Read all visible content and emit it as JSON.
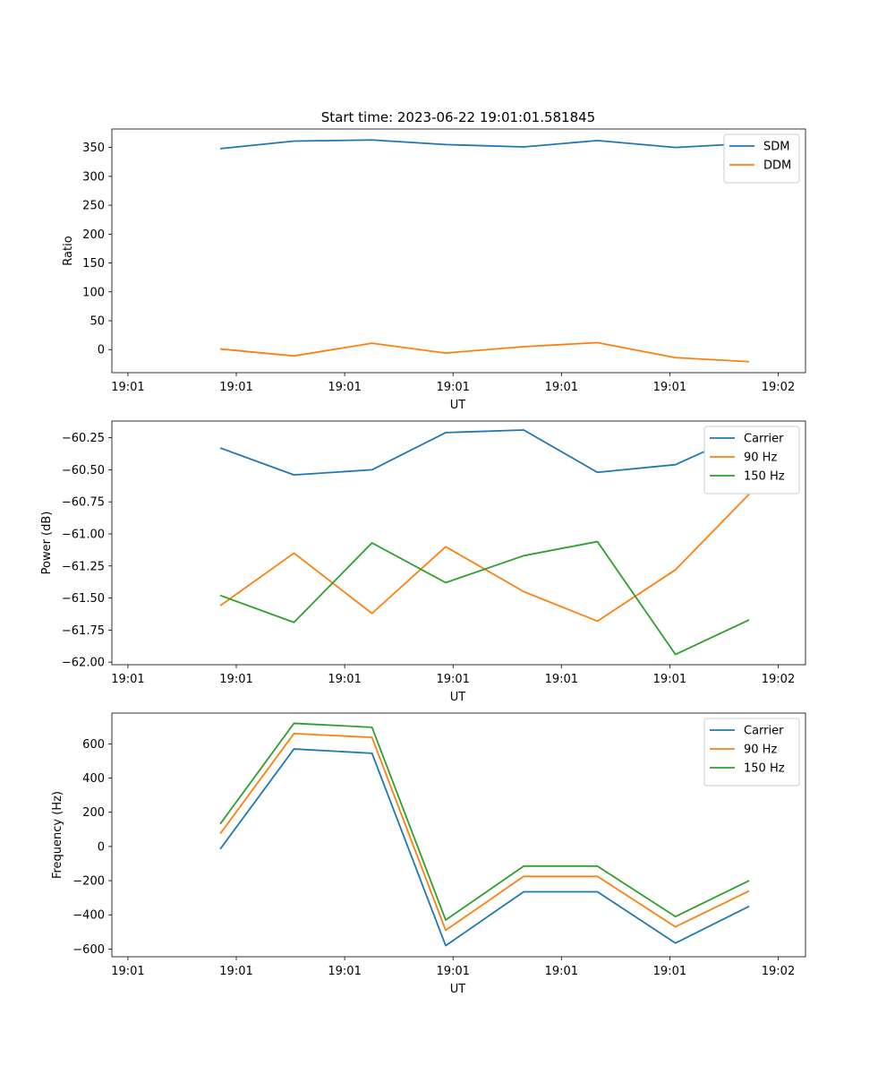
{
  "figure": {
    "title": "Start time: 2023-06-22 19:01:01.581845"
  },
  "chart_data": [
    {
      "type": "line",
      "xlabel": "UT",
      "ylabel": "Ratio",
      "xticks": [
        "19:01",
        "19:01",
        "19:01",
        "19:01",
        "19:01",
        "19:01",
        "19:02"
      ],
      "x": [
        2.5,
        4.2,
        6.0,
        7.7,
        9.5,
        11.2,
        13.0,
        14.7
      ],
      "xlim": [
        0,
        16.0
      ],
      "ylim": [
        -40,
        382
      ],
      "yticks": [
        0,
        50,
        100,
        150,
        200,
        250,
        300,
        350
      ],
      "ytick_labels": [
        "0",
        "50",
        "100",
        "150",
        "200",
        "250",
        "300",
        "350"
      ],
      "legend": "top-right",
      "series": [
        {
          "name": "SDM",
          "color": "#1f77b4",
          "values": [
            348,
            361,
            363,
            355,
            351,
            362,
            350,
            357
          ]
        },
        {
          "name": "DDM",
          "color": "#ff7f0e",
          "values": [
            1,
            -11,
            11,
            -6,
            5,
            12,
            -14,
            -21
          ]
        }
      ]
    },
    {
      "type": "line",
      "xlabel": "UT",
      "ylabel": "Power (dB)",
      "xticks": [
        "19:01",
        "19:01",
        "19:01",
        "19:01",
        "19:01",
        "19:01",
        "19:02"
      ],
      "x": [
        2.5,
        4.2,
        6.0,
        7.7,
        9.5,
        11.2,
        13.0,
        14.7
      ],
      "xlim": [
        0,
        16.0
      ],
      "ylim": [
        -62.02,
        -60.12
      ],
      "yticks": [
        -62.0,
        -61.75,
        -61.5,
        -61.25,
        -61.0,
        -60.75,
        -60.5,
        -60.25
      ],
      "ytick_labels": [
        "−62.00",
        "−61.75",
        "−61.50",
        "−61.25",
        "−61.00",
        "−60.75",
        "−60.50",
        "−60.25"
      ],
      "legend": "top-right",
      "series": [
        {
          "name": "Carrier",
          "color": "#1f77b4",
          "values": [
            -60.33,
            -60.54,
            -60.5,
            -60.21,
            -60.19,
            -60.52,
            -60.46,
            -60.2
          ]
        },
        {
          "name": "90 Hz",
          "color": "#ff7f0e",
          "values": [
            -61.56,
            -61.15,
            -61.62,
            -61.1,
            -61.45,
            -61.68,
            -61.28,
            -60.69
          ]
        },
        {
          "name": "150 Hz",
          "color": "#2ca02c",
          "values": [
            -61.48,
            -61.69,
            -61.07,
            -61.38,
            -61.17,
            -61.06,
            -61.94,
            -61.67
          ]
        }
      ]
    },
    {
      "type": "line",
      "xlabel": "UT",
      "ylabel": "Frequency (Hz)",
      "xticks": [
        "19:01",
        "19:01",
        "19:01",
        "19:01",
        "19:01",
        "19:01",
        "19:02"
      ],
      "x": [
        2.5,
        4.2,
        6.0,
        7.7,
        9.5,
        11.2,
        13.0,
        14.7
      ],
      "xlim": [
        0,
        16.0
      ],
      "ylim": [
        -645,
        780
      ],
      "yticks": [
        -600,
        -400,
        -200,
        0,
        200,
        400,
        600
      ],
      "ytick_labels": [
        "−600",
        "−400",
        "−200",
        "0",
        "200",
        "400",
        "600"
      ],
      "legend": "top-right",
      "series": [
        {
          "name": "Carrier",
          "color": "#1f77b4",
          "values": [
            -15,
            570,
            545,
            -580,
            -265,
            -265,
            -565,
            -350
          ]
        },
        {
          "name": "90 Hz",
          "color": "#ff7f0e",
          "values": [
            75,
            660,
            638,
            -490,
            -175,
            -175,
            -470,
            -260
          ]
        },
        {
          "name": "150 Hz",
          "color": "#2ca02c",
          "values": [
            132,
            720,
            697,
            -430,
            -115,
            -115,
            -410,
            -200
          ]
        }
      ]
    }
  ]
}
